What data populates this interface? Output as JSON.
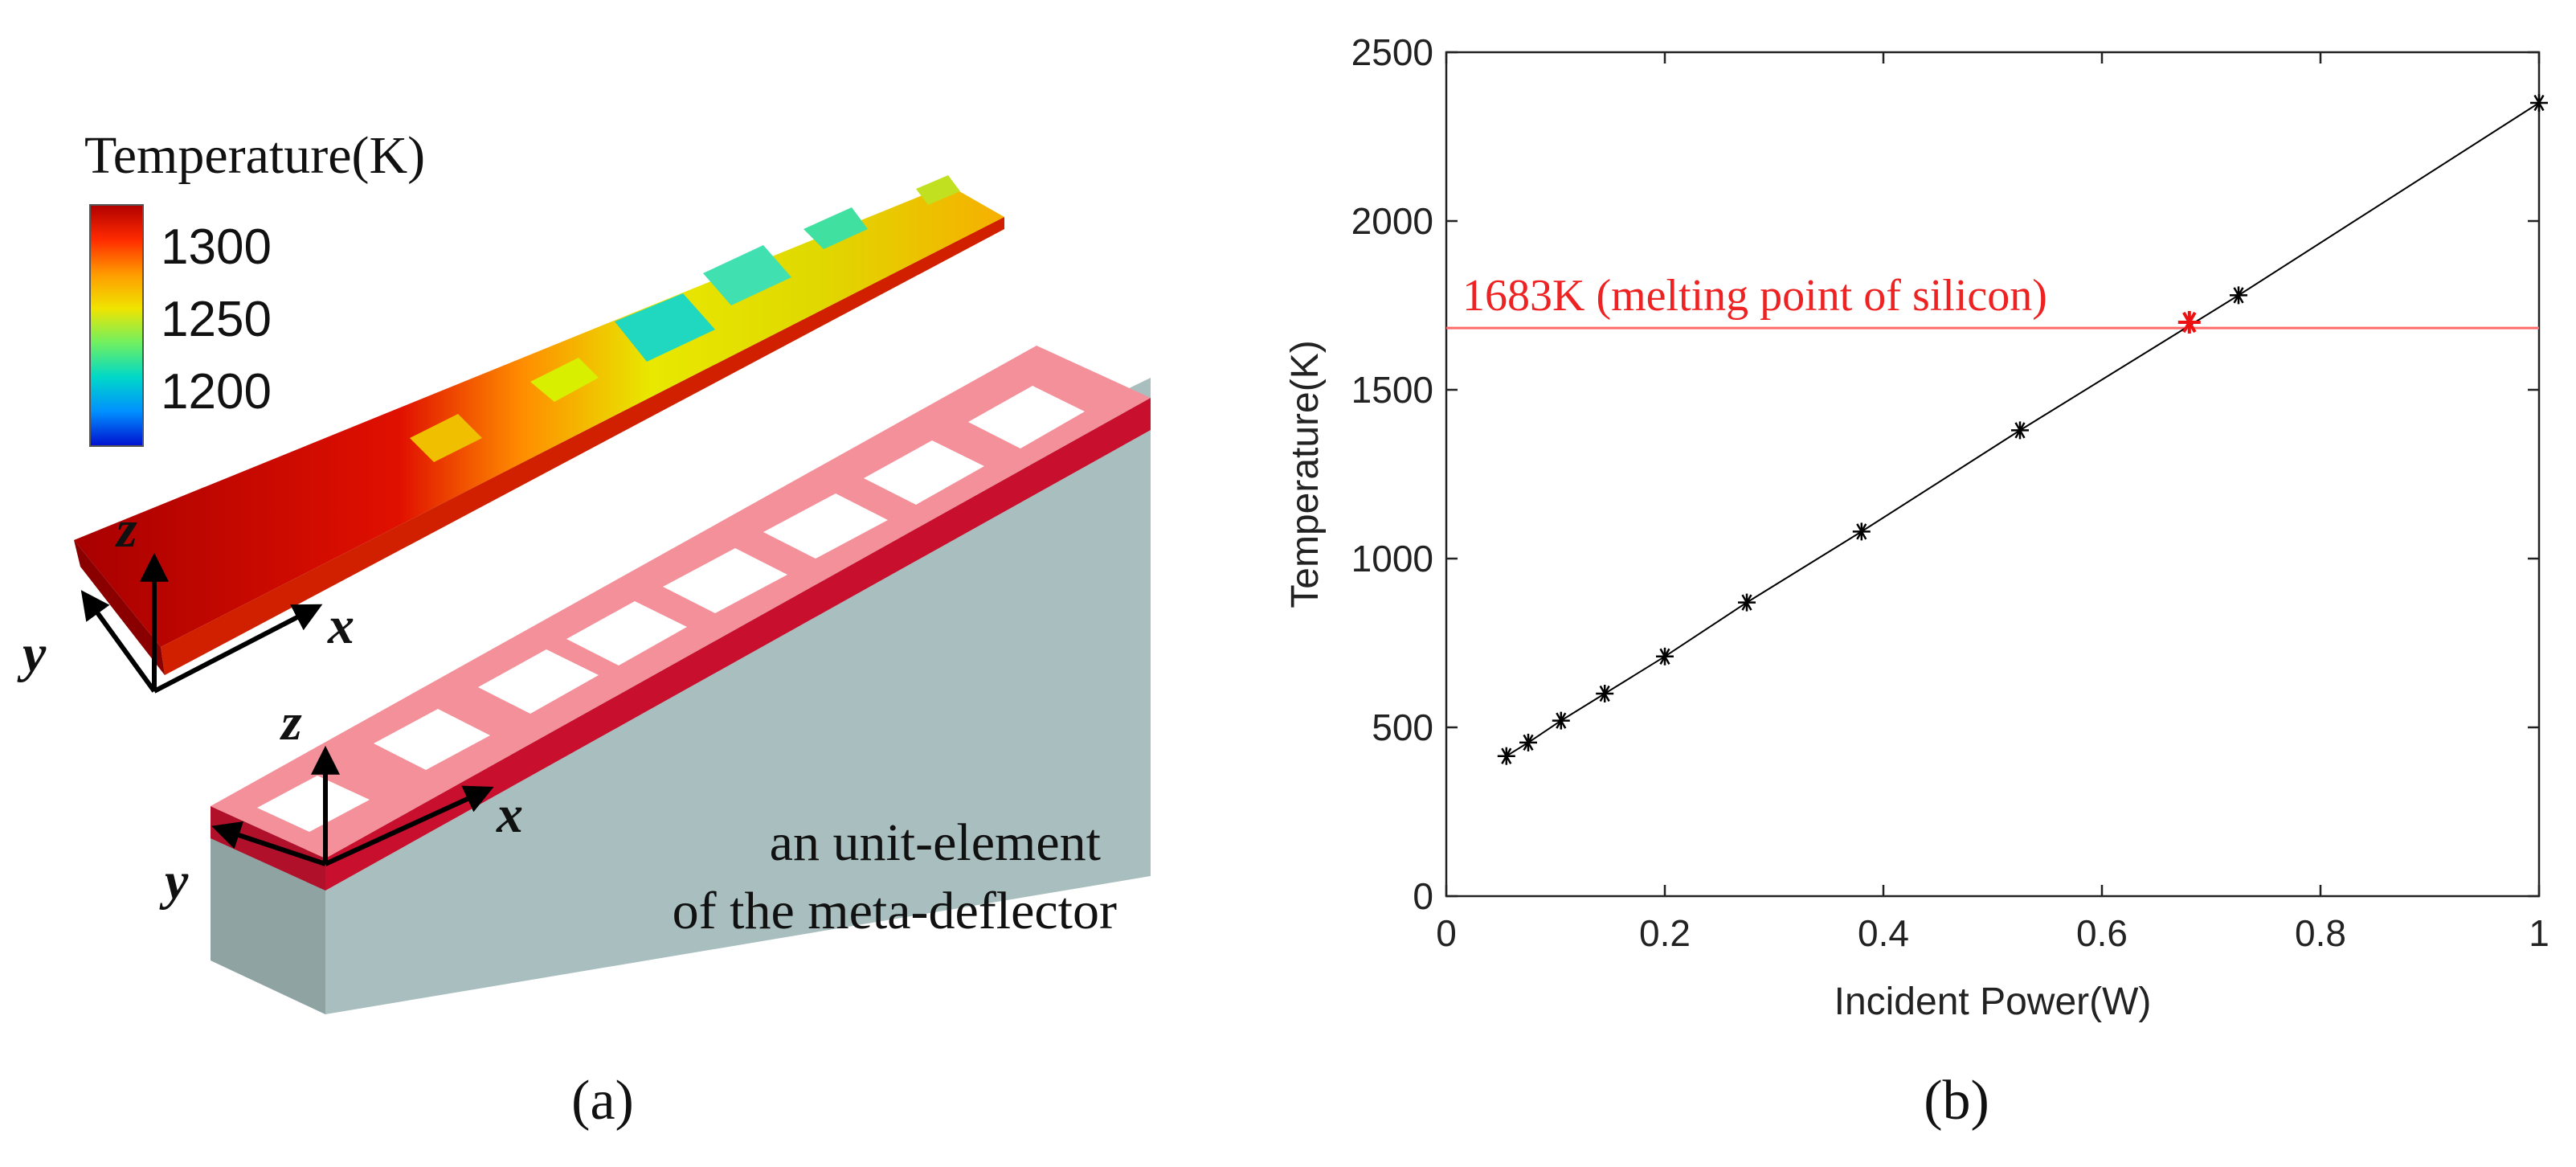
{
  "panel_a": {
    "colorbar": {
      "title": "Temperature(K)",
      "ticks": [
        "1300",
        "1250",
        "1200"
      ],
      "colors": [
        "#b00000",
        "#ff2a00",
        "#ff9a00",
        "#f0e400",
        "#70f060",
        "#00d8c8",
        "#0090ff",
        "#0010d0"
      ]
    },
    "axes_top": {
      "z": "z",
      "x": "x",
      "y": "y"
    },
    "axes_bottom": {
      "z": "z",
      "x": "x",
      "y": "y"
    },
    "caption_line1": "an unit-element",
    "caption_line2": "of the meta-deflector",
    "label": "(a)"
  },
  "panel_b": {
    "label": "(b)"
  },
  "chart_data": {
    "type": "line",
    "xlabel": "Incident Power(W)",
    "ylabel": "Temperature(K)",
    "xlim": [
      0,
      1
    ],
    "ylim": [
      0,
      2500
    ],
    "xticks": [
      0,
      0.2,
      0.4,
      0.6,
      0.8,
      1
    ],
    "xtick_labels": [
      "0",
      "0.2",
      "0.4",
      "0.6",
      "0.8",
      "1"
    ],
    "yticks": [
      0,
      500,
      1000,
      1500,
      2000,
      2500
    ],
    "ytick_labels": [
      "0",
      "500",
      "1000",
      "1500",
      "2000",
      "2500"
    ],
    "grid": false,
    "series": [
      {
        "color": "#000000",
        "marker": "*",
        "x": [
          0.055,
          0.075,
          0.105,
          0.145,
          0.2,
          0.275,
          0.38,
          0.525,
          0.725,
          1.0
        ],
        "y": [
          415,
          455,
          520,
          600,
          710,
          870,
          1080,
          1380,
          1780,
          2350
        ]
      }
    ],
    "reference_line": {
      "y": 1683,
      "color": "#ff6b6b",
      "label": "1683K (melting point of silicon)"
    },
    "highlight_point": {
      "x": 0.68,
      "y": 1700,
      "color": "#ee1111"
    }
  }
}
